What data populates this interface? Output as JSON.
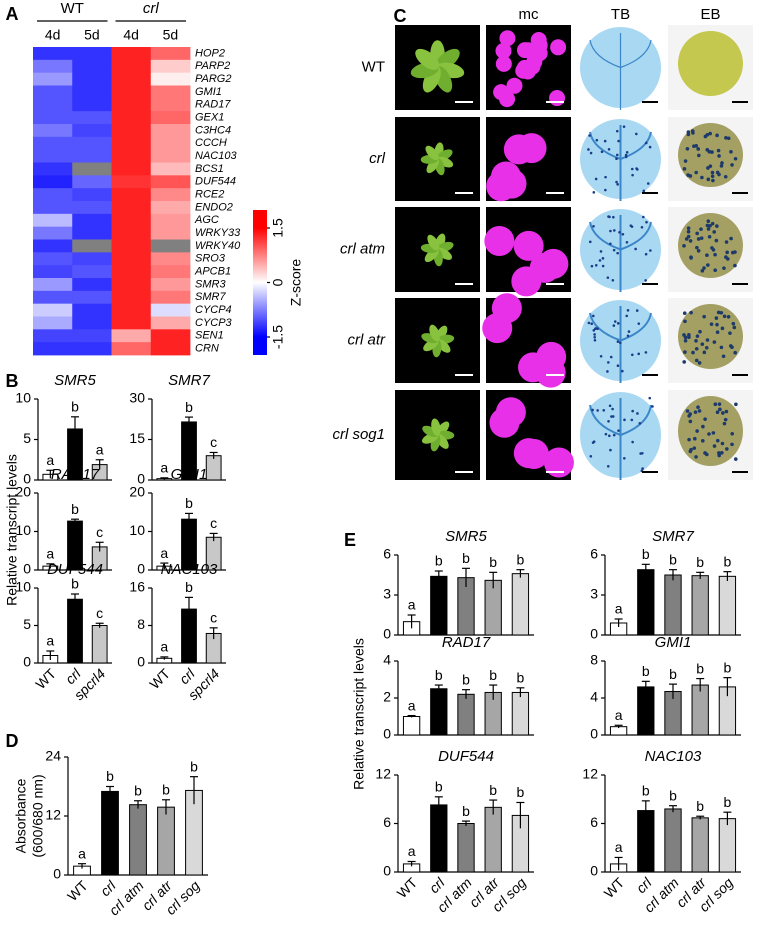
{
  "panel_labels": [
    "A",
    "B",
    "C",
    "D",
    "E"
  ],
  "image_panel": {
    "column_headers": [
      "mc",
      "TB",
      "EB"
    ],
    "row_labels": [
      "WT",
      "crl",
      "crl atm",
      "crl atr",
      "crl sog1"
    ]
  },
  "chart_data": [
    {
      "type": "heatmap",
      "groups": [
        "WT",
        "crl"
      ],
      "columns": [
        "4d",
        "5d",
        "4d",
        "5d"
      ],
      "rows": [
        "HOP2",
        "PARP2",
        "PARG2",
        "GMI1",
        "RAD17",
        "GEX1",
        "C3HC4",
        "CCCH",
        "NAC103",
        "BCS1",
        "DUF544",
        "RCE2",
        "ENDO2",
        "AGC",
        "WRKY33",
        "WRKY40",
        "SRO3",
        "APCB1",
        "SMR3",
        "SMR7",
        "CYCP4",
        "CYCP3",
        "SEN1",
        "CRN"
      ],
      "values": [
        [
          -1.2,
          -1.2,
          1.3,
          0.9
        ],
        [
          -0.8,
          -1.2,
          1.3,
          0.3
        ],
        [
          -0.6,
          -1.2,
          1.3,
          0.1
        ],
        [
          -1.0,
          -1.2,
          1.3,
          0.8
        ],
        [
          -1.0,
          -1.2,
          1.3,
          0.8
        ],
        [
          -1.0,
          -1.0,
          1.3,
          0.9
        ],
        [
          -0.8,
          -1.1,
          1.3,
          0.6
        ],
        [
          -1.0,
          -1.0,
          1.3,
          0.6
        ],
        [
          -1.0,
          -1.0,
          1.3,
          0.6
        ],
        [
          -1.2,
          null,
          1.3,
          0.4
        ],
        [
          -1.3,
          -0.9,
          1.2,
          1.0
        ],
        [
          -1.0,
          -1.1,
          1.3,
          0.7
        ],
        [
          -1.0,
          -1.0,
          1.3,
          0.5
        ],
        [
          -0.4,
          -1.2,
          1.3,
          0.6
        ],
        [
          -0.8,
          -1.2,
          1.3,
          0.6
        ],
        [
          -1.2,
          null,
          1.3,
          null
        ],
        [
          -1.0,
          -1.1,
          1.3,
          0.7
        ],
        [
          -1.1,
          -1.0,
          1.3,
          0.8
        ],
        [
          -0.6,
          -1.2,
          1.3,
          0.6
        ],
        [
          -1.0,
          -1.0,
          1.3,
          0.8
        ],
        [
          -0.3,
          -1.2,
          1.3,
          -0.2
        ],
        [
          -0.5,
          -1.2,
          1.3,
          0.5
        ],
        [
          -1.1,
          -1.1,
          0.5,
          1.3
        ],
        [
          -1.2,
          -1.2,
          0.9,
          1.3
        ]
      ],
      "zlim": [
        -1.5,
        1.5
      ],
      "zticks": [
        1.5,
        0,
        -1.5
      ],
      "colorbar_label": "Z-score",
      "colors": [
        "#0000ff",
        "#ffffff",
        "#ff0000"
      ],
      "missing_color": "#808080"
    },
    {
      "type": "bars",
      "ylabel": "Relative transcript levels",
      "categories": [
        "WT",
        "crl",
        "spcrl4"
      ],
      "colors": [
        "#ffffff",
        "#000000",
        "#c8c8c8"
      ],
      "charts": [
        {
          "title": "SMR5",
          "values": [
            0.7,
            6.3,
            1.9
          ],
          "errors": [
            0.5,
            1.5,
            0.6
          ],
          "letters": [
            "a",
            "b",
            "a"
          ],
          "ylim": [
            0,
            10
          ],
          "yticks": [
            0,
            5,
            10
          ]
        },
        {
          "title": "SMR7",
          "values": [
            0.5,
            21.5,
            9
          ],
          "errors": [
            0.3,
            1.8,
            1.2
          ],
          "letters": [
            "a",
            "b",
            "c"
          ],
          "ylim": [
            0,
            30
          ],
          "yticks": [
            0,
            15,
            30
          ]
        },
        {
          "title": "RAD17",
          "values": [
            1,
            12.7,
            6
          ],
          "errors": [
            0.6,
            0.5,
            1.2
          ],
          "letters": [
            "a",
            "b",
            "c"
          ],
          "ylim": [
            0,
            20
          ],
          "yticks": [
            0,
            10,
            20
          ]
        },
        {
          "title": "GMI1",
          "values": [
            1,
            13.2,
            8.5
          ],
          "errors": [
            0.8,
            1.5,
            1
          ],
          "letters": [
            "a",
            "b",
            "c"
          ],
          "ylim": [
            0,
            20
          ],
          "yticks": [
            0,
            10,
            20
          ]
        },
        {
          "title": "DUF544",
          "values": [
            1,
            8.5,
            5
          ],
          "errors": [
            0.6,
            0.7,
            0.3
          ],
          "letters": [
            "a",
            "b",
            "c"
          ],
          "ylim": [
            0,
            10
          ],
          "yticks": [
            0,
            5,
            10
          ]
        },
        {
          "title": "NAC103",
          "values": [
            1,
            11.5,
            6.3
          ],
          "errors": [
            0.3,
            2.5,
            1.2
          ],
          "letters": [
            "a",
            "b",
            "c"
          ],
          "ylim": [
            0,
            16
          ],
          "yticks": [
            0,
            8,
            16
          ]
        }
      ]
    },
    {
      "type": "bar",
      "ylabel": [
        "Absorbance",
        "(600/680 nm)"
      ],
      "categories": [
        "WT",
        "crl",
        "crl atm",
        "crl atr",
        "crl sog"
      ],
      "colors": [
        "#ffffff",
        "#000000",
        "#808080",
        "#a6a6a6",
        "#d9d9d9"
      ],
      "values": [
        1.8,
        17,
        14.3,
        13.8,
        17.2
      ],
      "errors": [
        0.5,
        1,
        0.8,
        1.5,
        2.8
      ],
      "letters": [
        "a",
        "b",
        "b",
        "b",
        "b"
      ],
      "ylim": [
        0,
        24
      ],
      "yticks": [
        0,
        12,
        24
      ]
    },
    {
      "type": "bars",
      "ylabel": "Relative transcript levels",
      "categories": [
        "WT",
        "crl",
        "crl atm",
        "crl atr",
        "crl sog"
      ],
      "colors": [
        "#ffffff",
        "#000000",
        "#808080",
        "#a6a6a6",
        "#d9d9d9"
      ],
      "charts": [
        {
          "title": "SMR5",
          "values": [
            1,
            4.4,
            4.3,
            4.1,
            4.6
          ],
          "errors": [
            0.5,
            0.4,
            0.7,
            0.6,
            0.3
          ],
          "letters": [
            "a",
            "b",
            "b",
            "b",
            "b"
          ],
          "ylim": [
            0,
            6
          ],
          "yticks": [
            0,
            3,
            6
          ]
        },
        {
          "title": "SMR7",
          "values": [
            0.9,
            4.9,
            4.5,
            4.45,
            4.4
          ],
          "errors": [
            0.3,
            0.4,
            0.4,
            0.25,
            0.35
          ],
          "letters": [
            "a",
            "b",
            "b",
            "b",
            "b"
          ],
          "ylim": [
            0,
            6
          ],
          "yticks": [
            0,
            3,
            6
          ]
        },
        {
          "title": "RAD17",
          "values": [
            1,
            2.5,
            2.2,
            2.3,
            2.3
          ],
          "errors": [
            0.05,
            0.2,
            0.25,
            0.4,
            0.25
          ],
          "letters": [
            "a",
            "b",
            "b",
            "b",
            "b"
          ],
          "ylim": [
            0,
            4
          ],
          "yticks": [
            0,
            2,
            4
          ]
        },
        {
          "title": "GMI1",
          "values": [
            0.9,
            5.2,
            4.7,
            5.4,
            5.2
          ],
          "errors": [
            0.15,
            0.6,
            0.8,
            0.7,
            1
          ],
          "letters": [
            "a",
            "b",
            "b",
            "b",
            "b"
          ],
          "ylim": [
            0,
            8
          ],
          "yticks": [
            0,
            4,
            8
          ]
        },
        {
          "title": "DUF544",
          "values": [
            1,
            8.3,
            6,
            8,
            7
          ],
          "errors": [
            0.3,
            1,
            0.3,
            0.9,
            1.6
          ],
          "letters": [
            "a",
            "b",
            "b",
            "b",
            "b"
          ],
          "ylim": [
            0,
            12
          ],
          "yticks": [
            0,
            6,
            12
          ]
        },
        {
          "title": "NAC103",
          "values": [
            1,
            7.6,
            7.8,
            6.7,
            6.6
          ],
          "errors": [
            0.8,
            1.2,
            0.4,
            0.2,
            0.8
          ],
          "letters": [
            "a",
            "b",
            "b",
            "b",
            "b"
          ],
          "ylim": [
            0,
            12
          ],
          "yticks": [
            0,
            6,
            12
          ]
        }
      ]
    }
  ]
}
